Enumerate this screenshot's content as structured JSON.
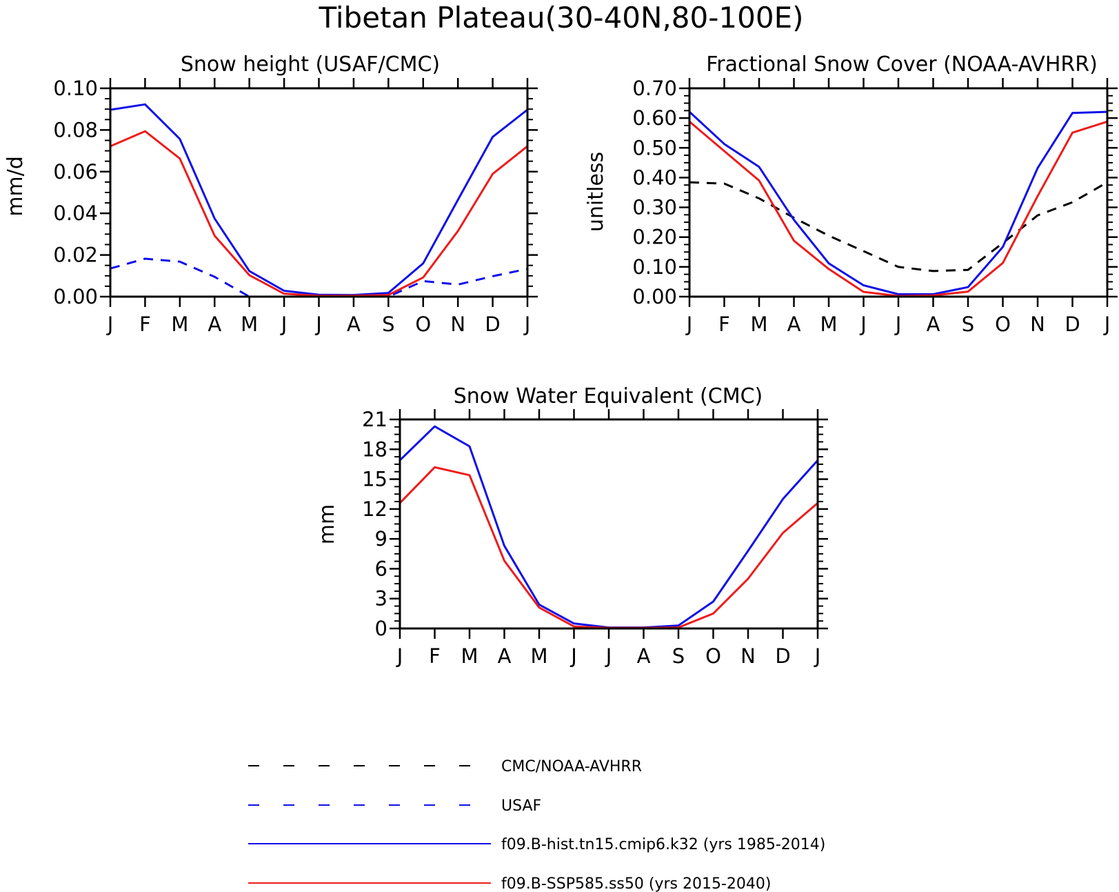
{
  "figure": {
    "title": "Tibetan Plateau(30-40N,80-100E)"
  },
  "colors": {
    "observation_black": "#000000",
    "observation_usaf": "#1010e8",
    "hist": "#1010e8",
    "ssp": "#ee1c1c"
  },
  "legend": [
    {
      "label": "CMC/NOAA-AVHRR",
      "color": "#000000",
      "style": "dashed-long"
    },
    {
      "label": "USAF",
      "color": "#1010e8",
      "style": "dashed-long"
    },
    {
      "label": "f09.B-hist.tn15.cmip6.k32 (yrs 1985-2014)",
      "color": "#1010e8",
      "style": "solid"
    },
    {
      "label": "f09.B-SSP585.ss50 (yrs 2015-2040)",
      "color": "#ee1c1c",
      "style": "solid"
    }
  ],
  "chart_data": [
    {
      "type": "line",
      "title": "Snow height (USAF/CMC)",
      "xlabel": "",
      "ylabel": "mm/d",
      "categories": [
        "J",
        "F",
        "M",
        "A",
        "M",
        "J",
        "J",
        "A",
        "S",
        "O",
        "N",
        "D",
        "J"
      ],
      "yticks": [
        "0.00",
        "0.02",
        "0.04",
        "0.06",
        "0.08",
        "0.10"
      ],
      "ylim": [
        0,
        0.1
      ],
      "series": [
        {
          "name": "USAF",
          "color": "#1010e8",
          "dash": "14,11",
          "values": [
            0.0135,
            0.0182,
            0.0168,
            0.0095,
            0.0,
            0.0,
            0.0,
            0.0,
            0.0,
            0.0075,
            0.0058,
            0.0098,
            0.0133
          ]
        },
        {
          "name": "f09.B-hist.tn15.cmip6.k32 (yrs 1985-2014)",
          "color": "#1010e8",
          "dash": "",
          "values": [
            0.0897,
            0.0923,
            0.0757,
            0.0375,
            0.0123,
            0.0028,
            0.0009,
            0.0008,
            0.0018,
            0.016,
            0.0465,
            0.0767,
            0.0897
          ]
        },
        {
          "name": "f09.B-SSP585.ss50 (yrs 2015-2040)",
          "color": "#ee1c1c",
          "dash": "",
          "values": [
            0.0722,
            0.0794,
            0.0663,
            0.0292,
            0.0103,
            0.0014,
            0.0004,
            0.0004,
            0.0008,
            0.0092,
            0.0315,
            0.0589,
            0.0722
          ]
        }
      ]
    },
    {
      "type": "line",
      "title": "Fractional Snow Cover (NOAA-AVHRR)",
      "xlabel": "",
      "ylabel": "unitless",
      "categories": [
        "J",
        "F",
        "M",
        "A",
        "M",
        "J",
        "J",
        "A",
        "S",
        "O",
        "N",
        "D",
        "J"
      ],
      "yticks": [
        "0.00",
        "0.10",
        "0.20",
        "0.30",
        "0.40",
        "0.50",
        "0.60",
        "0.70"
      ],
      "ylim": [
        0,
        0.7
      ],
      "series": [
        {
          "name": "CMC/NOAA-AVHRR",
          "color": "#000000",
          "dash": "14,11",
          "values": [
            0.384,
            0.38,
            0.33,
            0.265,
            0.205,
            0.153,
            0.1,
            0.086,
            0.09,
            0.18,
            0.273,
            0.317,
            0.384
          ]
        },
        {
          "name": "f09.B-hist.tn15.cmip6.k32 (yrs 1985-2014)",
          "color": "#1010e8",
          "dash": "",
          "values": [
            0.621,
            0.513,
            0.436,
            0.258,
            0.112,
            0.038,
            0.008,
            0.008,
            0.032,
            0.167,
            0.432,
            0.617,
            0.621
          ]
        },
        {
          "name": "f09.B-SSP585.ss50 (yrs 2015-2040)",
          "color": "#ee1c1c",
          "dash": "",
          "values": [
            0.588,
            0.489,
            0.39,
            0.188,
            0.093,
            0.016,
            0.002,
            0.004,
            0.017,
            0.113,
            0.338,
            0.551,
            0.588
          ]
        }
      ]
    },
    {
      "type": "line",
      "title": "Snow Water Equivalent (CMC)",
      "xlabel": "",
      "ylabel": "mm",
      "categories": [
        "J",
        "F",
        "M",
        "A",
        "M",
        "J",
        "J",
        "A",
        "S",
        "O",
        "N",
        "D",
        "J"
      ],
      "yticks": [
        "0",
        "3",
        "6",
        "9",
        "12",
        "15",
        "18",
        "21"
      ],
      "ylim": [
        0,
        21
      ],
      "series": [
        {
          "name": "f09.B-hist.tn15.cmip6.k32 (yrs 1985-2014)",
          "color": "#1010e8",
          "dash": "",
          "values": [
            16.9,
            20.3,
            18.3,
            8.3,
            2.4,
            0.5,
            0.1,
            0.1,
            0.3,
            2.7,
            7.8,
            13.0,
            16.9
          ]
        },
        {
          "name": "f09.B-SSP585.ss50 (yrs 2015-2040)",
          "color": "#ee1c1c",
          "dash": "",
          "values": [
            12.6,
            16.2,
            15.4,
            6.8,
            2.1,
            0.2,
            0.05,
            0.05,
            0.1,
            1.5,
            5.0,
            9.6,
            12.6
          ]
        }
      ]
    }
  ]
}
